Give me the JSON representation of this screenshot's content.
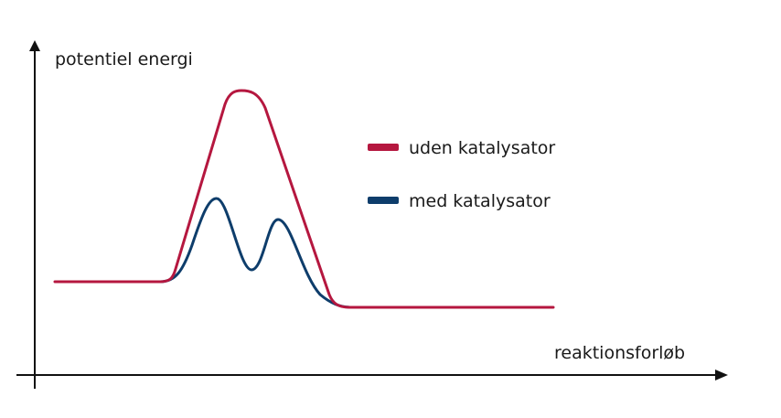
{
  "diagram": {
    "y_axis_label": "potentiel energi",
    "x_axis_label": "reaktionsforløb",
    "legend": [
      {
        "key": "uden",
        "label": "uden katalysator",
        "color": "#b5173f"
      },
      {
        "key": "med",
        "label": "med katalysator",
        "color": "#0e3d6b"
      }
    ],
    "colors": {
      "axis": "#111111",
      "uden": "#b5173f",
      "med": "#0e3d6b"
    },
    "curves": {
      "uden": {
        "start_level": "high",
        "peaks": 1,
        "end_level": "low"
      },
      "med": {
        "start_level": "high",
        "peaks": 2,
        "end_level": "low"
      }
    }
  }
}
